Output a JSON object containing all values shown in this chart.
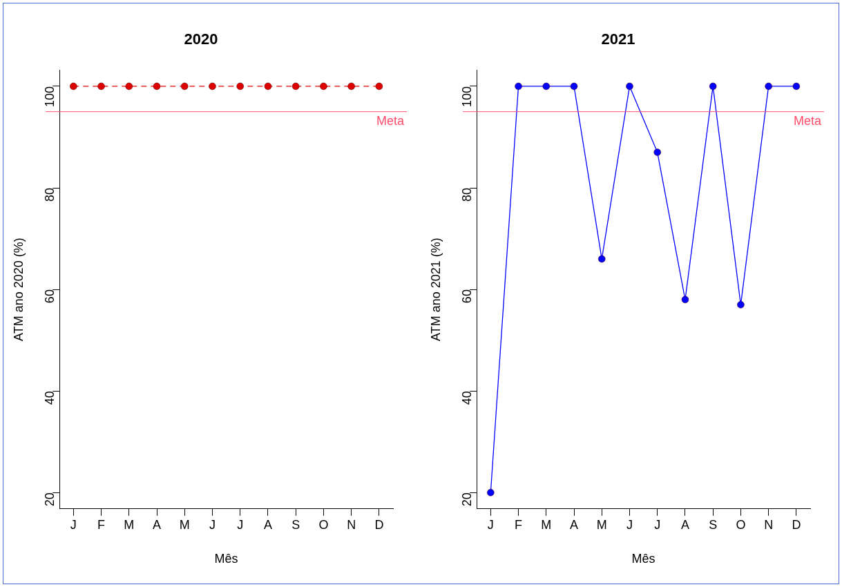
{
  "chart_data": [
    {
      "type": "line",
      "title": "2020",
      "xlabel": "Mês",
      "ylabel": "ATM ano 2020 (%)",
      "categories": [
        "J",
        "F",
        "M",
        "A",
        "M",
        "J",
        "J",
        "A",
        "S",
        "O",
        "N",
        "D"
      ],
      "series": [
        {
          "color": "#dd0000",
          "values": [
            100,
            100,
            100,
            100,
            100,
            100,
            100,
            100,
            100,
            100,
            100,
            100
          ]
        }
      ],
      "ylim": [
        16.8,
        103.2
      ],
      "yticks": [
        20,
        40,
        60,
        80,
        100
      ],
      "grid": false,
      "legend": false,
      "marker": "circle",
      "line_style": "dashed",
      "ref_lines": [
        {
          "axis": "y",
          "value": 95,
          "label": "Meta",
          "color": "#ff4d6a"
        }
      ]
    },
    {
      "type": "line",
      "title": "2021",
      "xlabel": "Mês",
      "ylabel": "ATM ano 2021 (%)",
      "categories": [
        "J",
        "F",
        "M",
        "A",
        "M",
        "J",
        "J",
        "A",
        "S",
        "O",
        "N",
        "D"
      ],
      "series": [
        {
          "color": "#0000ff",
          "values": [
            20,
            100,
            100,
            100,
            66,
            100,
            87,
            58,
            100,
            57,
            100,
            100
          ]
        }
      ],
      "ylim": [
        16.8,
        103.2
      ],
      "yticks": [
        20,
        40,
        60,
        80,
        100
      ],
      "grid": false,
      "legend": false,
      "marker": "circle",
      "line_style": "solid",
      "ref_lines": [
        {
          "axis": "y",
          "value": 95,
          "label": "Meta",
          "color": "#ff4d6a"
        }
      ]
    }
  ]
}
